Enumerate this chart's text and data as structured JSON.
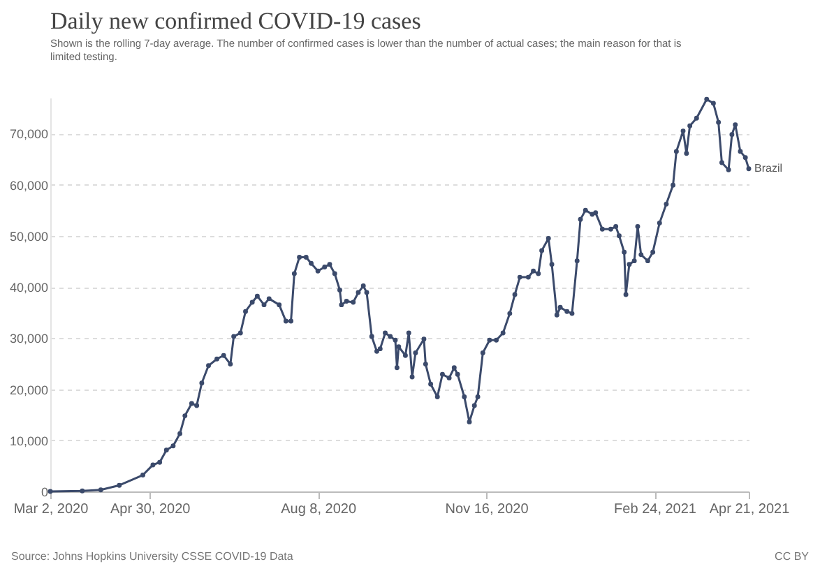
{
  "chart_data": {
    "type": "line",
    "title": "Daily new confirmed COVID-19 cases",
    "subtitle": "Shown is the rolling 7-day average. The number of confirmed cases is lower than the number of actual cases; the main reason for that is limited testing.",
    "annotations": [
      "Source: Johns Hopkins University CSSE COVID-19 Data",
      "CC BY"
    ],
    "x": [
      "2020-03-02",
      "2020-03-21",
      "2020-04-01",
      "2020-04-12",
      "2020-04-26",
      "2020-05-02",
      "2020-05-06",
      "2020-05-10",
      "2020-05-14",
      "2020-05-18",
      "2020-05-21",
      "2020-05-25",
      "2020-05-28",
      "2020-05-31",
      "2020-06-04",
      "2020-06-09",
      "2020-06-13",
      "2020-06-17",
      "2020-06-19",
      "2020-06-23",
      "2020-06-26",
      "2020-06-30",
      "2020-07-03",
      "2020-07-07",
      "2020-07-10",
      "2020-07-16",
      "2020-07-20",
      "2020-07-23",
      "2020-07-25",
      "2020-07-28",
      "2020-08-01",
      "2020-08-04",
      "2020-08-08",
      "2020-08-12",
      "2020-08-15",
      "2020-08-18",
      "2020-08-21",
      "2020-08-22",
      "2020-08-25",
      "2020-08-29",
      "2020-09-01",
      "2020-09-04",
      "2020-09-06",
      "2020-09-09",
      "2020-09-12",
      "2020-09-14",
      "2020-09-17",
      "2020-09-20",
      "2020-09-23",
      "2020-09-24",
      "2020-09-25",
      "2020-09-29",
      "2020-10-01",
      "2020-10-03",
      "2020-10-05",
      "2020-10-10",
      "2020-10-11",
      "2020-10-14",
      "2020-10-18",
      "2020-10-21",
      "2020-10-25",
      "2020-10-28",
      "2020-10-30",
      "2020-11-03",
      "2020-11-06",
      "2020-11-09",
      "2020-11-11",
      "2020-11-14",
      "2020-11-18",
      "2020-11-22",
      "2020-11-26",
      "2020-11-30",
      "2020-12-03",
      "2020-12-06",
      "2020-12-11",
      "2020-12-14",
      "2020-12-17",
      "2020-12-19",
      "2020-12-23",
      "2020-12-25",
      "2020-12-28",
      "2020-12-30",
      "2021-01-03",
      "2021-01-06",
      "2021-01-09",
      "2021-01-11",
      "2021-01-14",
      "2021-01-18",
      "2021-01-20",
      "2021-01-24",
      "2021-01-29",
      "2021-02-01",
      "2021-02-03",
      "2021-02-06",
      "2021-02-07",
      "2021-02-09",
      "2021-02-12",
      "2021-02-14",
      "2021-02-16",
      "2021-02-20",
      "2021-02-23",
      "2021-02-27",
      "2021-03-03",
      "2021-03-07",
      "2021-03-09",
      "2021-03-13",
      "2021-03-15",
      "2021-03-17",
      "2021-03-21",
      "2021-03-27",
      "2021-03-31",
      "2021-04-03",
      "2021-04-05",
      "2021-04-09",
      "2021-04-11",
      "2021-04-13",
      "2021-04-16",
      "2021-04-19",
      "2021-04-21"
    ],
    "series": [
      {
        "name": "Brazil",
        "color": "#3b4a6b",
        "values": [
          0,
          100,
          300,
          1200,
          3200,
          5200,
          5700,
          8100,
          8900,
          11300,
          14800,
          17200,
          16800,
          21200,
          24600,
          25900,
          26600,
          24900,
          30300,
          31000,
          35200,
          37000,
          38200,
          36500,
          37700,
          36500,
          33300,
          33300,
          42600,
          45800,
          45800,
          44600,
          43100,
          43900,
          44400,
          42600,
          39400,
          36500,
          37200,
          37000,
          38900,
          40200,
          38900,
          30300,
          27400,
          27900,
          31000,
          30300,
          29600,
          24200,
          28300,
          26600,
          31000,
          22400,
          27100,
          29800,
          24900,
          21000,
          18500,
          22900,
          22200,
          24200,
          22900,
          18500,
          13600,
          16800,
          18500,
          27100,
          29600,
          29600,
          31000,
          34800,
          38500,
          41900,
          41900,
          43100,
          42600,
          47100,
          49500,
          44400,
          34500,
          36000,
          35200,
          34800,
          45100,
          53200,
          55000,
          54200,
          54500,
          51300,
          51300,
          51800,
          50000,
          46800,
          38500,
          44400,
          45100,
          51800,
          46300,
          45100,
          46800,
          52500,
          56200,
          59900,
          66500,
          70500,
          66100,
          71500,
          73000,
          76700,
          75900,
          72200,
          64300,
          62900,
          69800,
          71700,
          66500,
          65300,
          63100
        ]
      }
    ],
    "xlim": [
      "2020-03-02",
      "2021-04-21"
    ],
    "xticks": [
      {
        "value": "2020-03-02",
        "label": "Mar 2, 2020"
      },
      {
        "value": "2020-04-30",
        "label": "Apr 30, 2020"
      },
      {
        "value": "2020-08-08",
        "label": "Aug 8, 2020"
      },
      {
        "value": "2020-11-16",
        "label": "Nov 16, 2020"
      },
      {
        "value": "2021-02-24",
        "label": "Feb 24, 2021"
      },
      {
        "value": "2021-04-21",
        "label": "Apr 21, 2021"
      }
    ],
    "ylim": [
      0,
      77000
    ],
    "yticks": [
      {
        "value": 0,
        "label": "0"
      },
      {
        "value": 10000,
        "label": "10,000"
      },
      {
        "value": 20000,
        "label": "20,000"
      },
      {
        "value": 30000,
        "label": "30,000"
      },
      {
        "value": 40000,
        "label": "40,000"
      },
      {
        "value": 50000,
        "label": "50,000"
      },
      {
        "value": 60000,
        "label": "60,000"
      },
      {
        "value": 70000,
        "label": "70,000"
      }
    ],
    "grid": "y",
    "marker": "circle",
    "line_style": "solid"
  }
}
